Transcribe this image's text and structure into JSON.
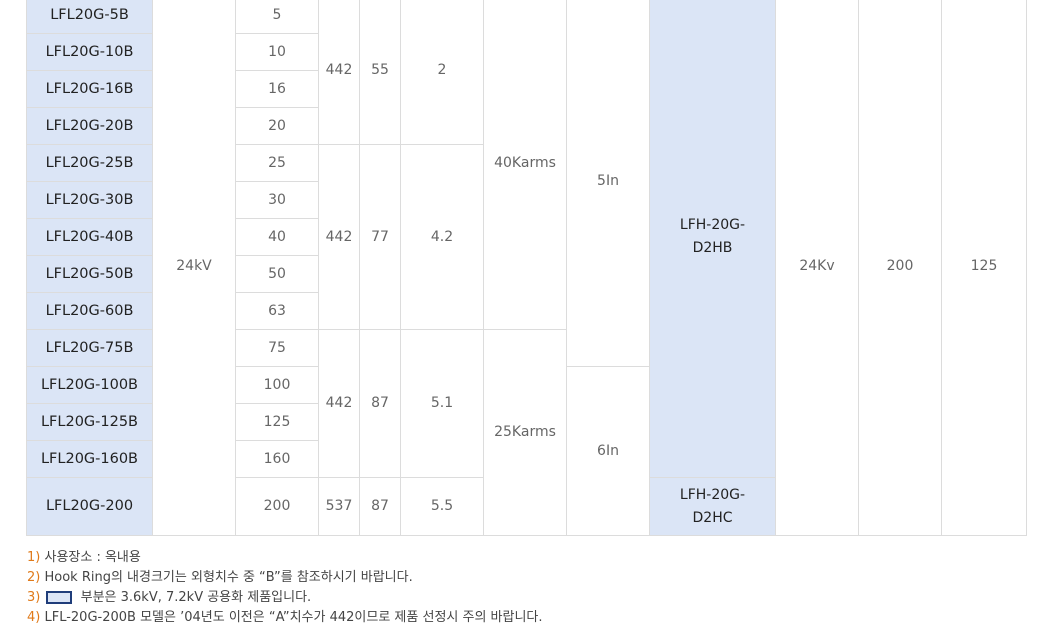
{
  "table": {
    "rows": [
      {
        "model": "LFL20G-5B",
        "rating": "5"
      },
      {
        "model": "LFL20G-10B",
        "rating": "10"
      },
      {
        "model": "LFL20G-16B",
        "rating": "16"
      },
      {
        "model": "LFL20G-20B",
        "rating": "20"
      },
      {
        "model": "LFL20G-25B",
        "rating": "25"
      },
      {
        "model": "LFL20G-30B",
        "rating": "30"
      },
      {
        "model": "LFL20G-40B",
        "rating": "40"
      },
      {
        "model": "LFL20G-50B",
        "rating": "50"
      },
      {
        "model": "LFL20G-60B",
        "rating": "63"
      },
      {
        "model": "LFL20G-75B",
        "rating": "75"
      },
      {
        "model": "LFL20G-100B",
        "rating": "100"
      },
      {
        "model": "LFL20G-125B",
        "rating": "125"
      },
      {
        "model": "LFL20G-160B",
        "rating": "160"
      },
      {
        "model": "LFL20G-200",
        "rating": "200"
      }
    ],
    "voltage": "24kV",
    "dim_groups": [
      {
        "start": 0,
        "span": 4,
        "a": "442",
        "b": "55",
        "c": "2"
      },
      {
        "start": 4,
        "span": 5,
        "a": "442",
        "b": "77",
        "c": "4.2"
      },
      {
        "start": 9,
        "span": 4,
        "a": "442",
        "b": "87",
        "c": "5.1"
      },
      {
        "start": 13,
        "span": 1,
        "a": "537",
        "b": "87",
        "c": "5.5"
      }
    ],
    "short_circuit": [
      {
        "start": 0,
        "span": 9,
        "text": "40Karms"
      },
      {
        "start": 9,
        "span": 5,
        "text": "25Karms"
      }
    ],
    "current": [
      {
        "start": 0,
        "span": 10,
        "text": "5In"
      },
      {
        "start": 10,
        "span": 4,
        "text": "6In"
      }
    ],
    "holder": [
      {
        "start": 0,
        "span": 13,
        "text": "LFH-20G-\nD2HB"
      },
      {
        "start": 13,
        "span": 1,
        "text": "LFH-20G-\nD2HC"
      }
    ],
    "holder_voltage": "24Kv",
    "col_a": "200",
    "col_b": "125"
  },
  "notes": [
    {
      "num": "1)",
      "text": "사용장소 : 옥내용"
    },
    {
      "num": "2)",
      "text": "Hook Ring의 내경크기는 외형치수 중 “B”를 참조하시기 바랍니다."
    },
    {
      "num": "3)",
      "text": "부분은 3.6kV, 7.2kV 공용화 제품입니다.",
      "swatch": "#dbe5f6"
    },
    {
      "num": "4)",
      "text": "LFL-20G-200B 모델은 ’04년도 이전은 “A”치수가 442이므로 제품 선정시 주의 바랍니다."
    }
  ]
}
